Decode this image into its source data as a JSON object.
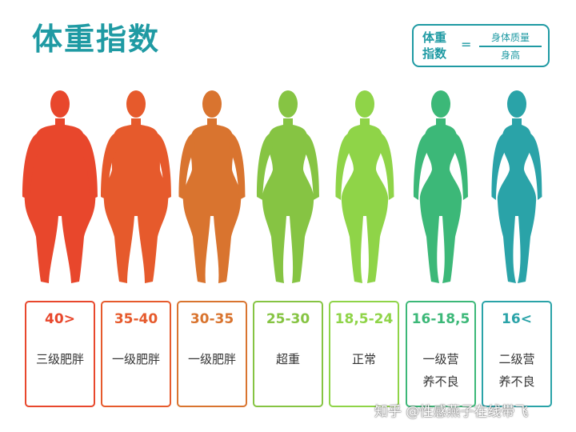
{
  "title": "体重指数",
  "formula": {
    "lhs_line1": "体重",
    "lhs_line2": "指数",
    "equals": "=",
    "numerator": "身体质量",
    "denominator": "身高"
  },
  "categories": [
    {
      "range": "40>",
      "label_line1": "三级肥胖",
      "label_line2": "",
      "color": "#e8472c"
    },
    {
      "range": "35-40",
      "label_line1": "一级肥胖",
      "label_line2": "",
      "color": "#e65a2c"
    },
    {
      "range": "30-35",
      "label_line1": "一级肥胖",
      "label_line2": "",
      "color": "#d9742f"
    },
    {
      "range": "25-30",
      "label_line1": "超重",
      "label_line2": "",
      "color": "#86c443"
    },
    {
      "range": "18,5-24",
      "label_line1": "正常",
      "label_line2": "",
      "color": "#8fd448"
    },
    {
      "range": "16-18,5",
      "label_line1": "一级营",
      "label_line2": "养不良",
      "color": "#3cb878"
    },
    {
      "range": "16<",
      "label_line1": "二级营",
      "label_line2": "养不良",
      "color": "#2aa3a8"
    }
  ],
  "watermark": "知乎 @性感燕子在线带飞"
}
